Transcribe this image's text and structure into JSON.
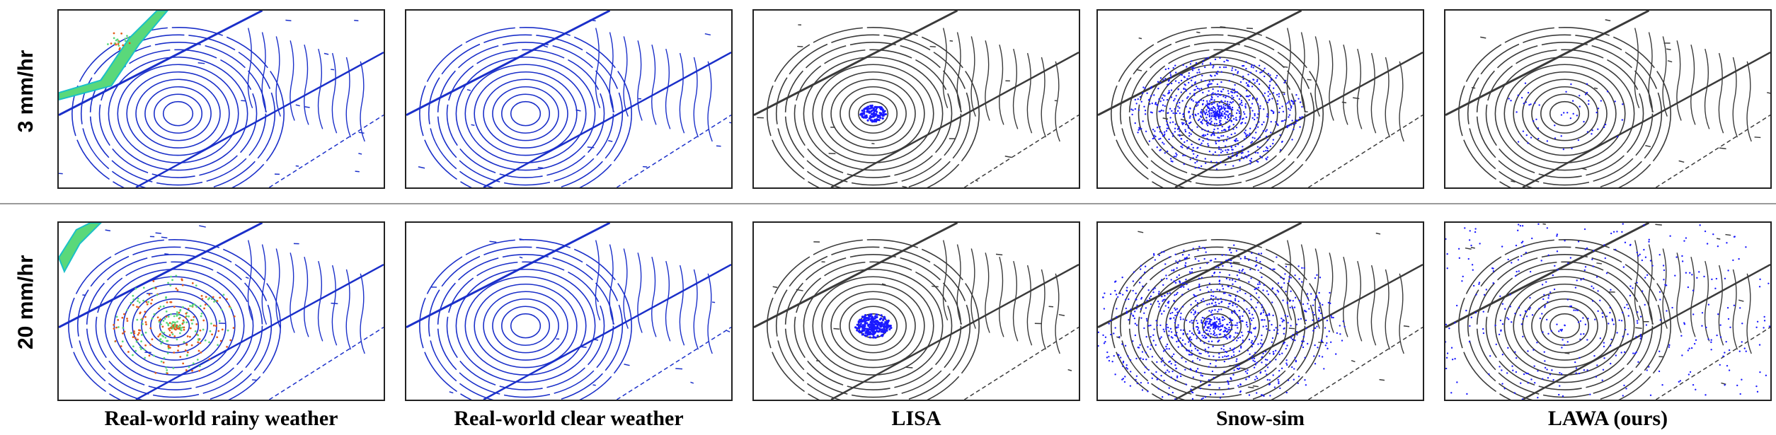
{
  "rows": [
    {
      "label": "3 mm/hr"
    },
    {
      "label": "20 mm/hr"
    }
  ],
  "columns": [
    {
      "label": "Real-world rainy weather",
      "style": "color"
    },
    {
      "label": "Real-world clear weather",
      "style": "blue"
    },
    {
      "label": "LISA",
      "style": "gray"
    },
    {
      "label": "Snow-sim",
      "style": "gray"
    },
    {
      "label": "LAWA (ours)",
      "style": "gray"
    }
  ],
  "colors": {
    "scan_blue": "#1a2fc9",
    "scan_gray": "#3a3a3a",
    "noise_blue": "#1a1aff",
    "rain_warm": "#e35b1a",
    "rain_green": "#5ad87a"
  }
}
